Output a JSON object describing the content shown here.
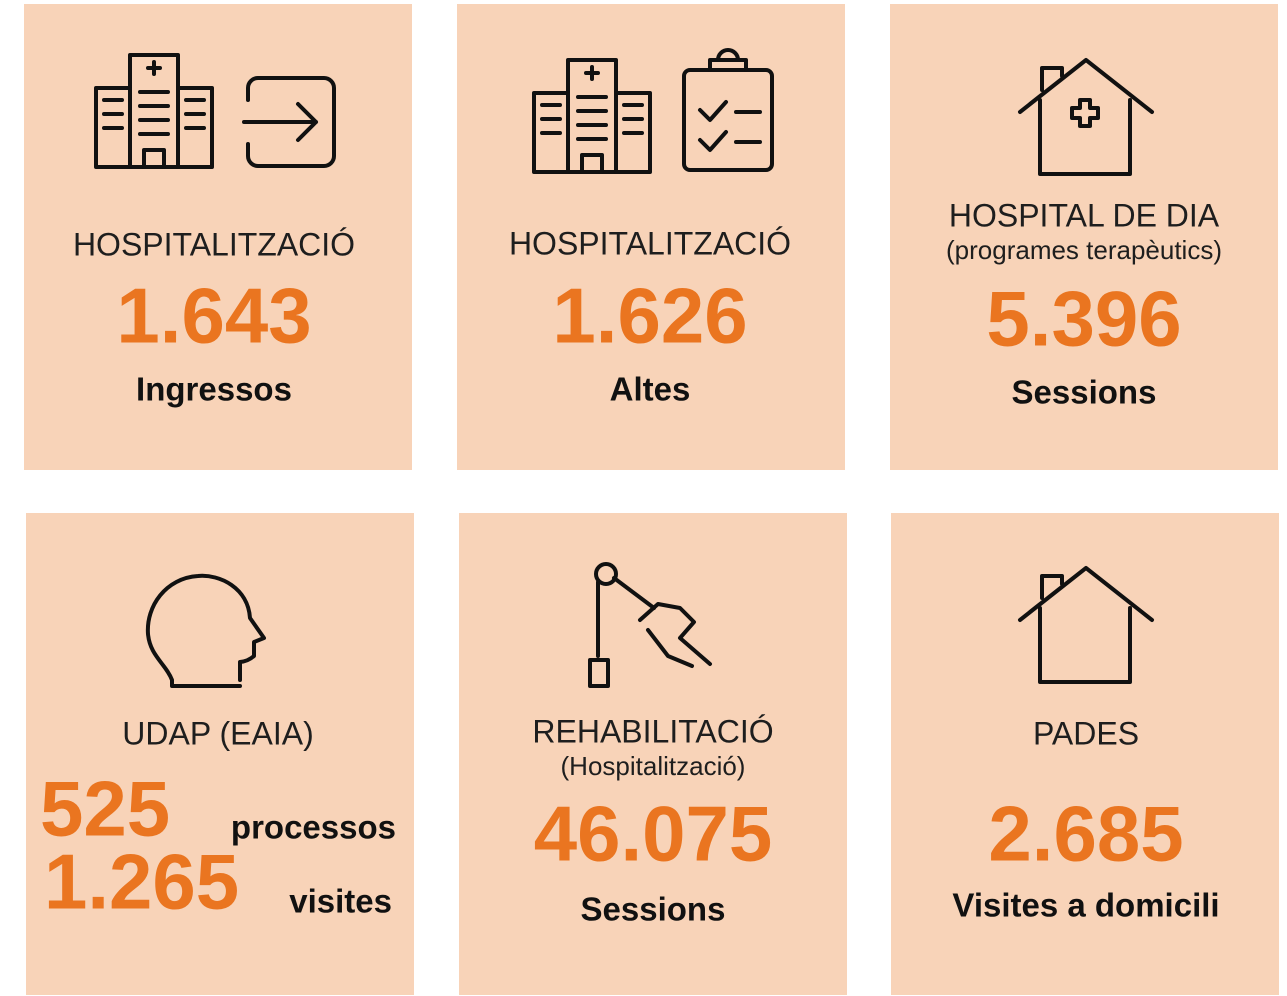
{
  "cards": [
    {
      "title": "HOSPITALITZACIÓ",
      "value": "1.643",
      "label": "Ingressos"
    },
    {
      "title": "HOSPITALITZACIÓ",
      "value": "1.626",
      "label": "Altes"
    },
    {
      "title": "HOSPITAL DE DIA",
      "subtitle": "(programes terapèutics)",
      "value": "5.396",
      "label": "Sessions"
    },
    {
      "title": "UDAP (EAIA)",
      "lines": [
        {
          "value": "525",
          "label": "processos"
        },
        {
          "value": "1.265",
          "label": "visites"
        }
      ]
    },
    {
      "title": "REHABILITACIÓ",
      "subtitle": "(Hospitalització)",
      "value": "46.075",
      "label": "Sessions"
    },
    {
      "title": "PADES",
      "value": "2.685",
      "label": "Visites a domicili"
    }
  ]
}
